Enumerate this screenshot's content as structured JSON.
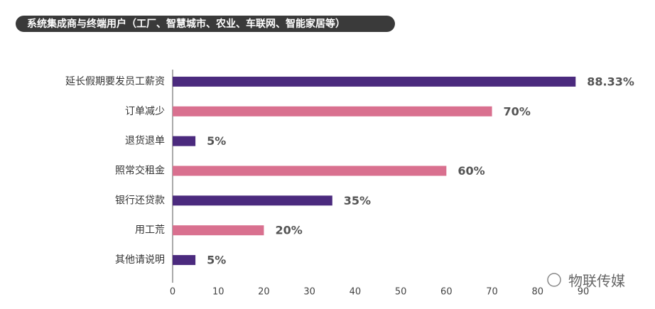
{
  "chart_data": {
    "type": "bar",
    "orientation": "horizontal",
    "title": "系统集成商与终端用户（工厂、智慧城市、农业、车联网、智能家居等）",
    "categories": [
      "延长假期要发员工薪资",
      "订单减少",
      "退货退单",
      "照常交租金",
      "银行还贷款",
      "用工荒",
      "其他请说明"
    ],
    "values": [
      88.33,
      70,
      5,
      60,
      35,
      20,
      5
    ],
    "value_labels": [
      "88.33%",
      "70%",
      "5%",
      "60%",
      "35%",
      "20%",
      "5%"
    ],
    "colors": [
      "#4b2a7e",
      "#d9708f",
      "#4b2a7e",
      "#d9708f",
      "#4b2a7e",
      "#d9708f",
      "#4b2a7e"
    ],
    "xlim": [
      0,
      90
    ],
    "xticks": [
      0,
      10,
      20,
      30,
      40,
      50,
      60,
      70,
      80,
      90
    ],
    "grid": false,
    "watermark": "物联传媒"
  }
}
